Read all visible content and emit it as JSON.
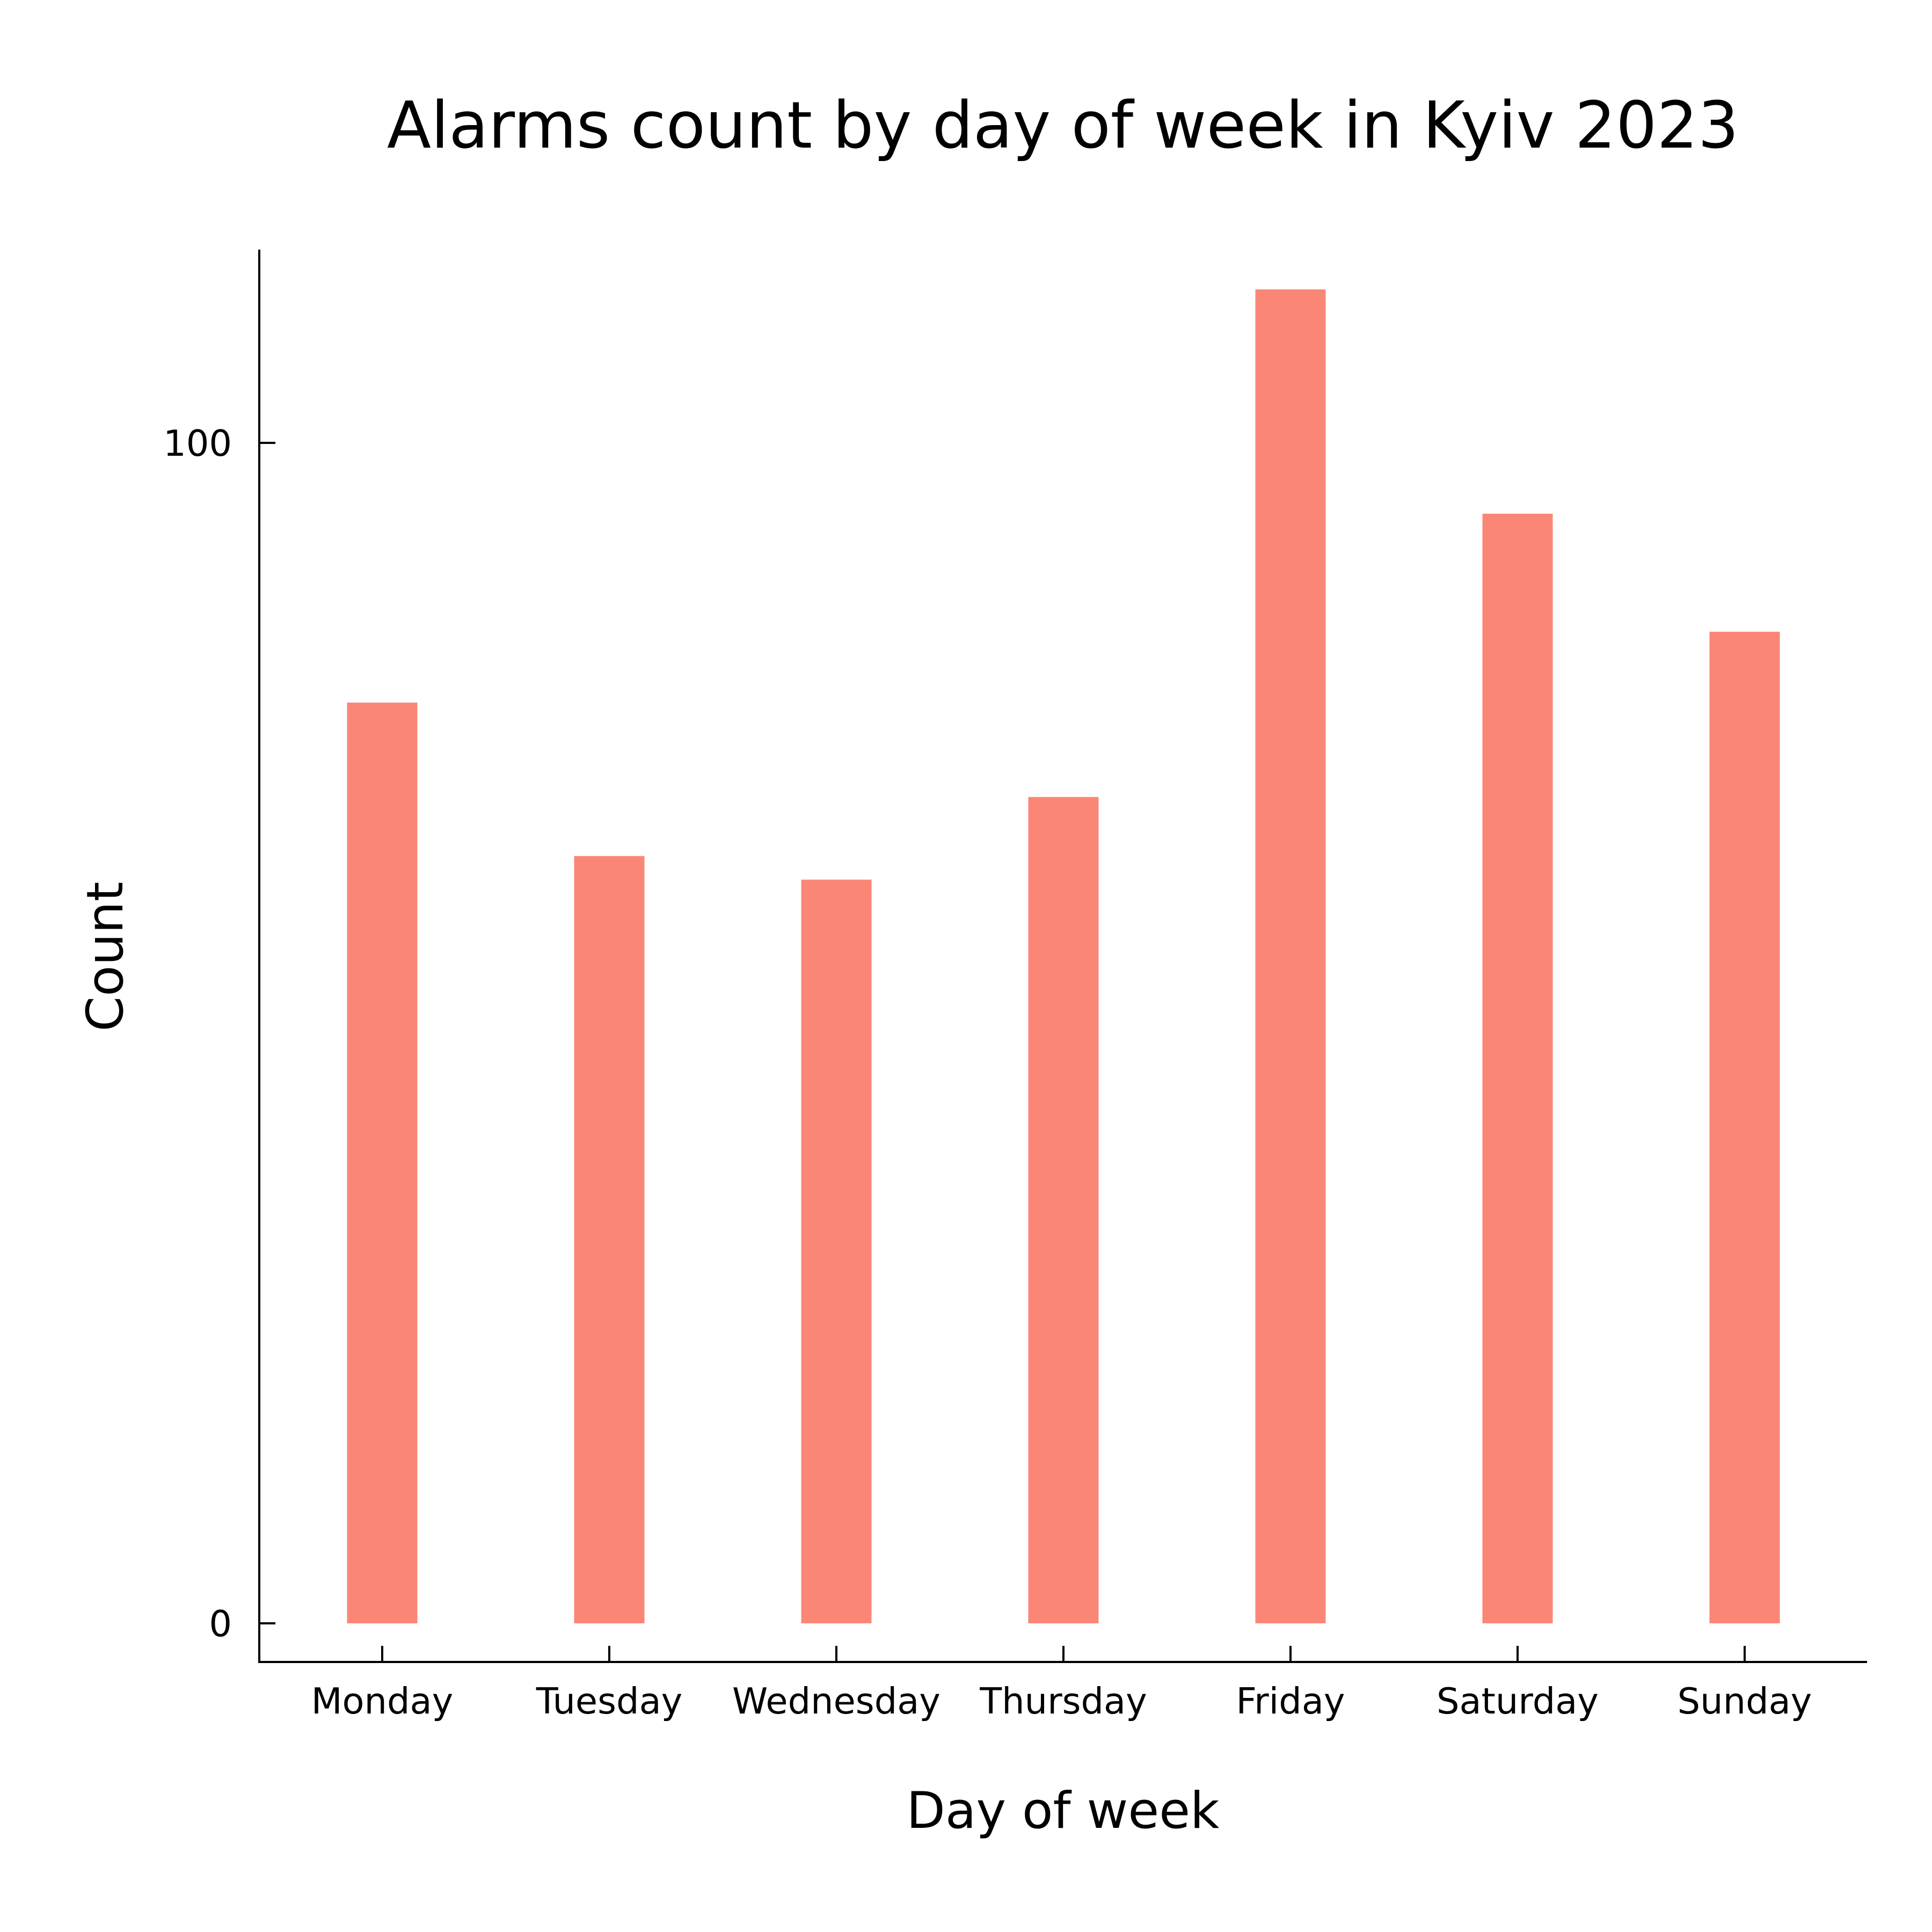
{
  "chart_data": {
    "type": "bar",
    "title": "Alarms count by day of week in Kyiv 2023",
    "xlabel": "Day of week",
    "ylabel": "Count",
    "categories": [
      "Monday",
      "Tuesday",
      "Wednesday",
      "Thursday",
      "Friday",
      "Saturday",
      "Sunday"
    ],
    "values": [
      78,
      65,
      63,
      70,
      113,
      94,
      84
    ],
    "yticks": [
      0,
      100
    ],
    "ytick_labels": [
      "0",
      "100"
    ],
    "ylim": [
      -3.2,
      116.5
    ],
    "grid": false,
    "legend": "none",
    "bar_color": "#fa8775"
  }
}
